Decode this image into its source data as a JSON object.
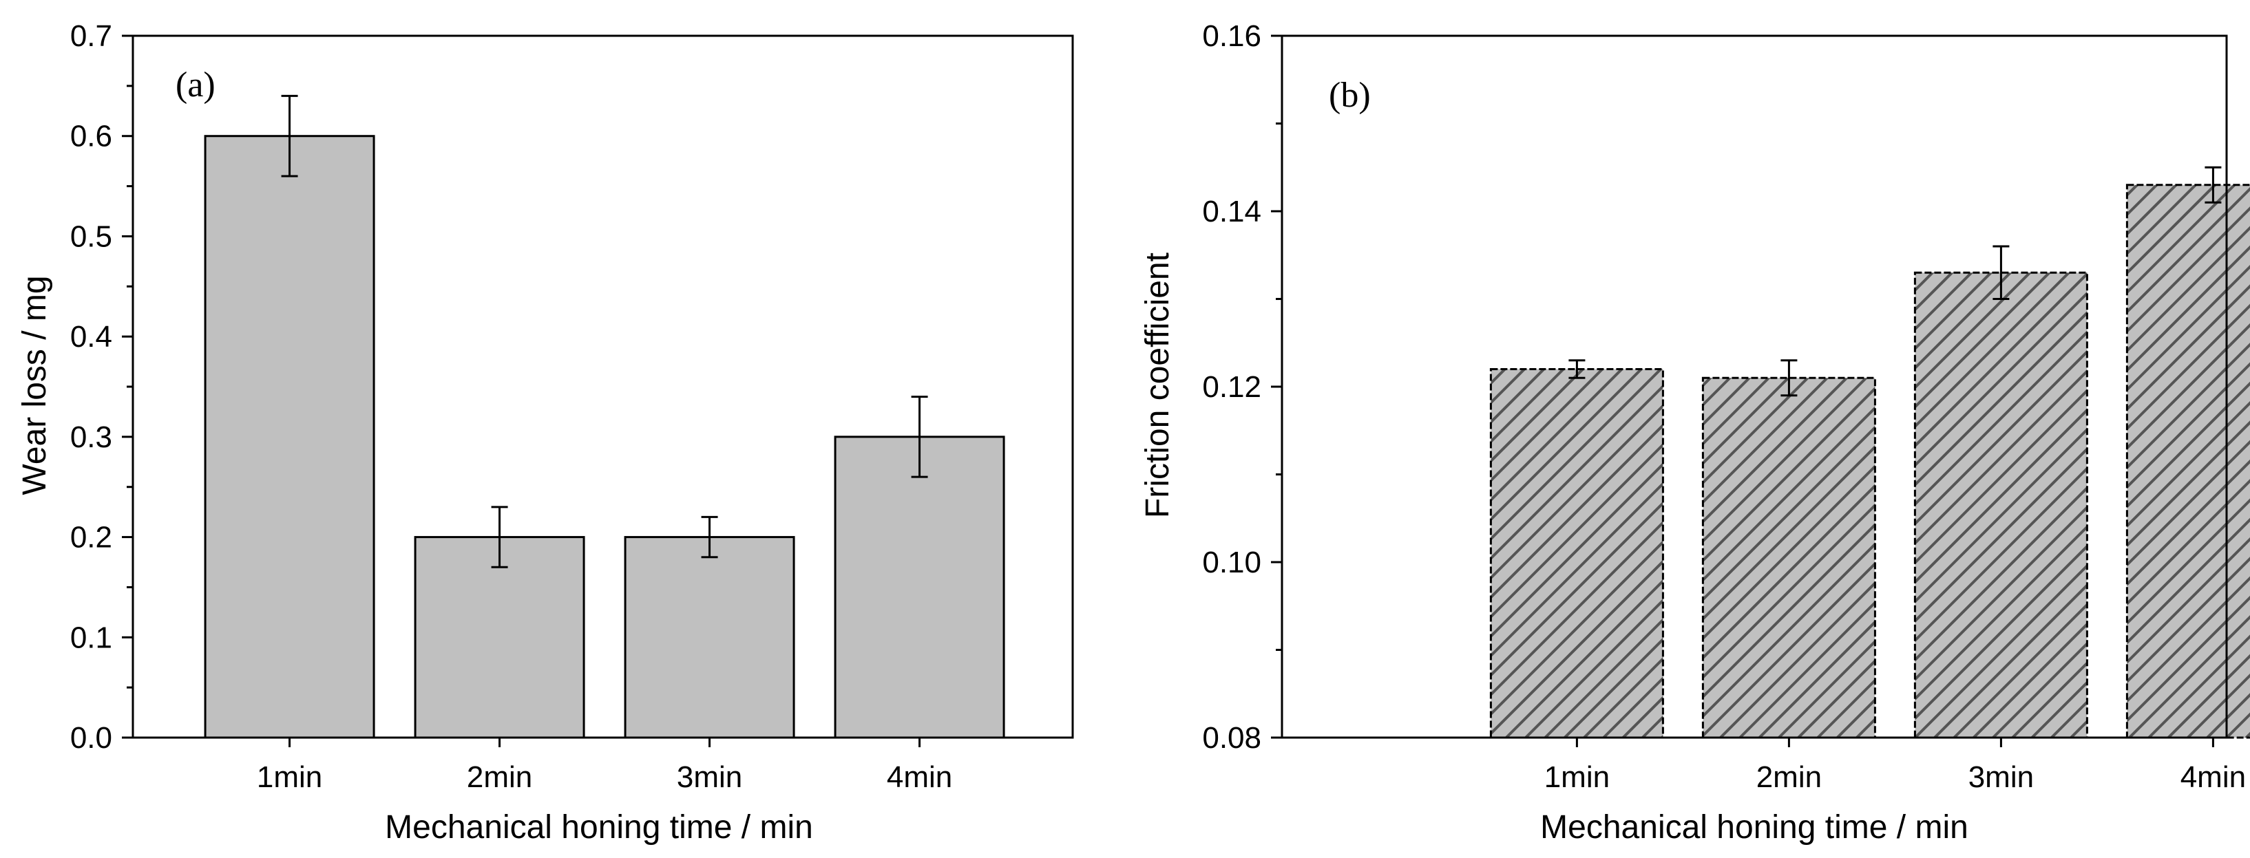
{
  "chart_data": [
    {
      "type": "bar",
      "panel_label": "(a)",
      "categories": [
        "1min",
        "2min",
        "3min",
        "4min"
      ],
      "values": [
        0.6,
        0.2,
        0.2,
        0.3
      ],
      "errors": [
        0.04,
        0.03,
        0.02,
        0.04
      ],
      "xlabel": "Mechanical honing time / min",
      "ylabel": "Wear loss / mg",
      "ylim": [
        0,
        0.7
      ],
      "yticks": [
        "0.0",
        "0.1",
        "0.2",
        "0.3",
        "0.4",
        "0.5",
        "0.6",
        "0.7"
      ],
      "bar_style": "solid",
      "bar_color": "#c0c0c0"
    },
    {
      "type": "bar",
      "panel_label": "(b)",
      "categories": [
        "1min",
        "2min",
        "3min",
        "4min"
      ],
      "values": [
        0.122,
        0.121,
        0.133,
        0.143
      ],
      "errors": [
        0.001,
        0.002,
        0.003,
        0.002
      ],
      "xlabel": "Mechanical honing time / min",
      "ylabel": "Friction coefficient",
      "ylim": [
        0.08,
        0.16
      ],
      "yticks": [
        "0.08",
        "0.10",
        "0.12",
        "0.14",
        "0.16"
      ],
      "bar_style": "hatched",
      "bar_color": "#c0c0c0",
      "hatch_color": "#555555"
    }
  ]
}
